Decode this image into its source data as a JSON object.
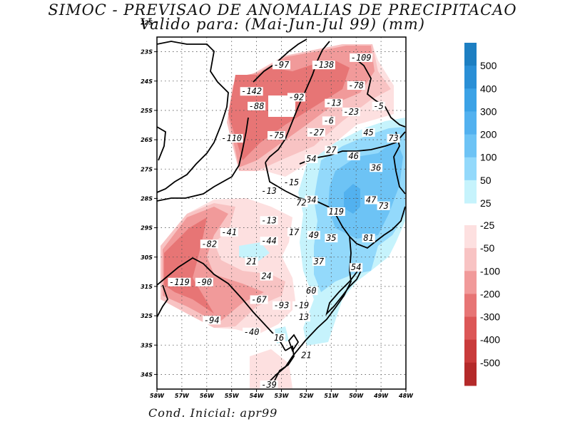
{
  "title": "SIMOC - PREVISAO DE ANOMALIAS DE PRECIPITACAO",
  "subtitle": "Valido para: (Mai-Jun-Jul 99) (mm)",
  "footer": "Cond. Inicial: apr99",
  "map": {
    "lon_range": [
      -58,
      -48
    ],
    "lat_range": [
      -34.5,
      -22.5
    ],
    "lat_ticks": [
      "22S",
      "23S",
      "24S",
      "25S",
      "26S",
      "27S",
      "28S",
      "29S",
      "30S",
      "31S",
      "32S",
      "33S",
      "34S"
    ],
    "lon_ticks": [
      "58W",
      "57W",
      "56W",
      "55W",
      "54W",
      "53W",
      "52W",
      "51W",
      "50W",
      "49W",
      "48W"
    ],
    "grid": true
  },
  "contour_labels": [
    {
      "text": "-97",
      "lon": -53.0,
      "lat": -23.5
    },
    {
      "text": "-138",
      "lon": -51.3,
      "lat": -23.5
    },
    {
      "text": "-109",
      "lon": -49.8,
      "lat": -23.25
    },
    {
      "text": "-78",
      "lon": -50.0,
      "lat": -24.2
    },
    {
      "text": "-142",
      "lon": -54.2,
      "lat": -24.4
    },
    {
      "text": "-88",
      "lon": -54.0,
      "lat": -24.9
    },
    {
      "text": "-92",
      "lon": -52.4,
      "lat": -24.6
    },
    {
      "text": "-13",
      "lon": -50.9,
      "lat": -24.8
    },
    {
      "text": "-23",
      "lon": -50.2,
      "lat": -25.1
    },
    {
      "text": "-5",
      "lon": -49.1,
      "lat": -24.9
    },
    {
      "text": "-6",
      "lon": -51.1,
      "lat": -25.4
    },
    {
      "text": "-27",
      "lon": -51.6,
      "lat": -25.8
    },
    {
      "text": "45",
      "lon": -49.5,
      "lat": -25.8
    },
    {
      "text": "73",
      "lon": -48.5,
      "lat": -26.0
    },
    {
      "text": "-110",
      "lon": -55.0,
      "lat": -26.0
    },
    {
      "text": "-75",
      "lon": -53.2,
      "lat": -25.9
    },
    {
      "text": "27",
      "lon": -51.0,
      "lat": -26.4
    },
    {
      "text": "46",
      "lon": -50.1,
      "lat": -26.6
    },
    {
      "text": "54",
      "lon": -51.8,
      "lat": -26.7
    },
    {
      "text": "36",
      "lon": -49.2,
      "lat": -27.0
    },
    {
      "text": "-15",
      "lon": -52.6,
      "lat": -27.5
    },
    {
      "text": "-13",
      "lon": -53.5,
      "lat": -27.8
    },
    {
      "text": "34",
      "lon": -51.8,
      "lat": -28.1
    },
    {
      "text": "72",
      "lon": -52.2,
      "lat": -28.2
    },
    {
      "text": "47",
      "lon": -49.4,
      "lat": -28.1
    },
    {
      "text": "73",
      "lon": -48.9,
      "lat": -28.3
    },
    {
      "text": "119",
      "lon": -50.8,
      "lat": -28.5
    },
    {
      "text": "-13",
      "lon": -53.5,
      "lat": -28.8
    },
    {
      "text": "-41",
      "lon": -55.1,
      "lat": -29.2
    },
    {
      "text": "17",
      "lon": -52.5,
      "lat": -29.2
    },
    {
      "text": "49",
      "lon": -51.7,
      "lat": -29.3
    },
    {
      "text": "35",
      "lon": -51.0,
      "lat": -29.4
    },
    {
      "text": "81",
      "lon": -49.5,
      "lat": -29.4
    },
    {
      "text": "-82",
      "lon": -55.9,
      "lat": -29.6
    },
    {
      "text": "-44",
      "lon": -53.5,
      "lat": -29.5
    },
    {
      "text": "21",
      "lon": -54.2,
      "lat": -30.2
    },
    {
      "text": "37",
      "lon": -51.5,
      "lat": -30.2
    },
    {
      "text": "54",
      "lon": -50.0,
      "lat": -30.4
    },
    {
      "text": "24",
      "lon": -53.6,
      "lat": -30.7
    },
    {
      "text": "-119",
      "lon": -57.1,
      "lat": -30.9
    },
    {
      "text": "-90",
      "lon": -56.1,
      "lat": -30.9
    },
    {
      "text": "60",
      "lon": -51.8,
      "lat": -31.2
    },
    {
      "text": "-67",
      "lon": -53.9,
      "lat": -31.5
    },
    {
      "text": "-93",
      "lon": -53.0,
      "lat": -31.7
    },
    {
      "text": "-19",
      "lon": -52.2,
      "lat": -31.7
    },
    {
      "text": "13",
      "lon": -52.1,
      "lat": -32.1
    },
    {
      "text": "-94",
      "lon": -55.8,
      "lat": -32.2
    },
    {
      "text": "-40",
      "lon": -54.2,
      "lat": -32.6
    },
    {
      "text": "16",
      "lon": -53.1,
      "lat": -32.8
    },
    {
      "text": "21",
      "lon": -52.0,
      "lat": -33.4
    },
    {
      "text": "-39",
      "lon": -53.5,
      "lat": -34.4
    }
  ],
  "colorbar": {
    "positive": [
      {
        "label": "500",
        "color": "#1d7fc2"
      },
      {
        "label": "400",
        "color": "#2a8fd6"
      },
      {
        "label": "300",
        "color": "#3ba2e6"
      },
      {
        "label": "200",
        "color": "#52b1ef"
      },
      {
        "label": "100",
        "color": "#6dc3f5"
      },
      {
        "label": "50",
        "color": "#93d9fb"
      },
      {
        "label": "25",
        "color": "#c6f3fc"
      }
    ],
    "negative": [
      {
        "label": "-25",
        "color": "#fde0e0"
      },
      {
        "label": "-50",
        "color": "#f8c3c3"
      },
      {
        "label": "-100",
        "color": "#f19a9a"
      },
      {
        "label": "-200",
        "color": "#e77575"
      },
      {
        "label": "-300",
        "color": "#dc5757"
      },
      {
        "label": "-400",
        "color": "#c93b3b"
      },
      {
        "label": "-500",
        "color": "#b42a2a"
      }
    ]
  }
}
